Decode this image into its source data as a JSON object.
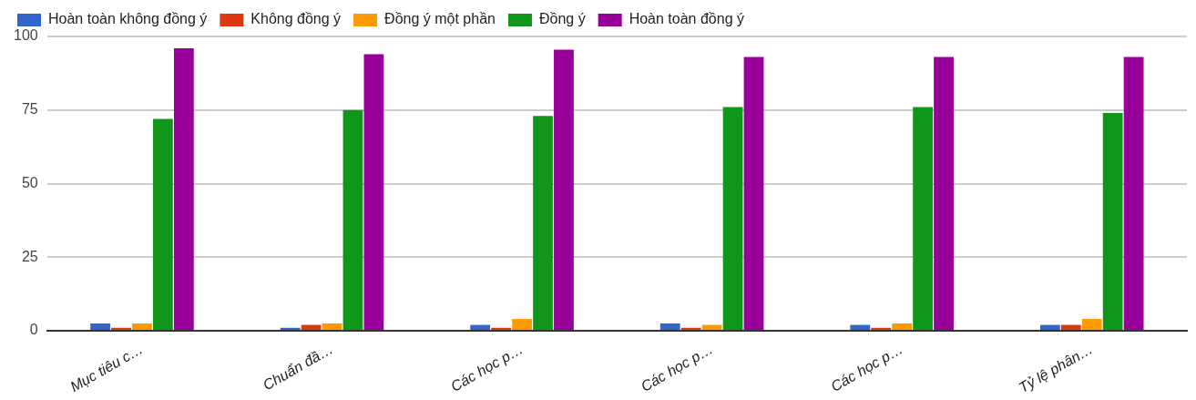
{
  "chart_data": {
    "type": "bar",
    "categories": [
      "Mục tiêu c…",
      "Chuẩn đầ…",
      "Các học p…",
      "Các học p…",
      "Các học p…",
      "Tỷ lệ phân…"
    ],
    "series": [
      {
        "name": "Hoàn toàn không đồng ý",
        "color": "#3366cc",
        "values": [
          2.5,
          1,
          2,
          2.5,
          2,
          2
        ]
      },
      {
        "name": "Không đồng ý",
        "color": "#dc3912",
        "values": [
          1,
          2,
          1,
          1,
          1,
          2
        ]
      },
      {
        "name": "Đồng ý một phần",
        "color": "#ff9900",
        "values": [
          2.5,
          2.5,
          4,
          2,
          2.5,
          4
        ]
      },
      {
        "name": "Đồng ý",
        "color": "#109618",
        "values": [
          72,
          75,
          73,
          76,
          76,
          74
        ]
      },
      {
        "name": "Hoàn toàn đồng ý",
        "color": "#990099",
        "values": [
          96,
          94,
          95.5,
          93,
          93,
          93
        ]
      }
    ],
    "ylim": [
      0,
      100
    ],
    "yticks": [
      0,
      25,
      50,
      75,
      100
    ],
    "grid": "y",
    "legend": "top left"
  }
}
